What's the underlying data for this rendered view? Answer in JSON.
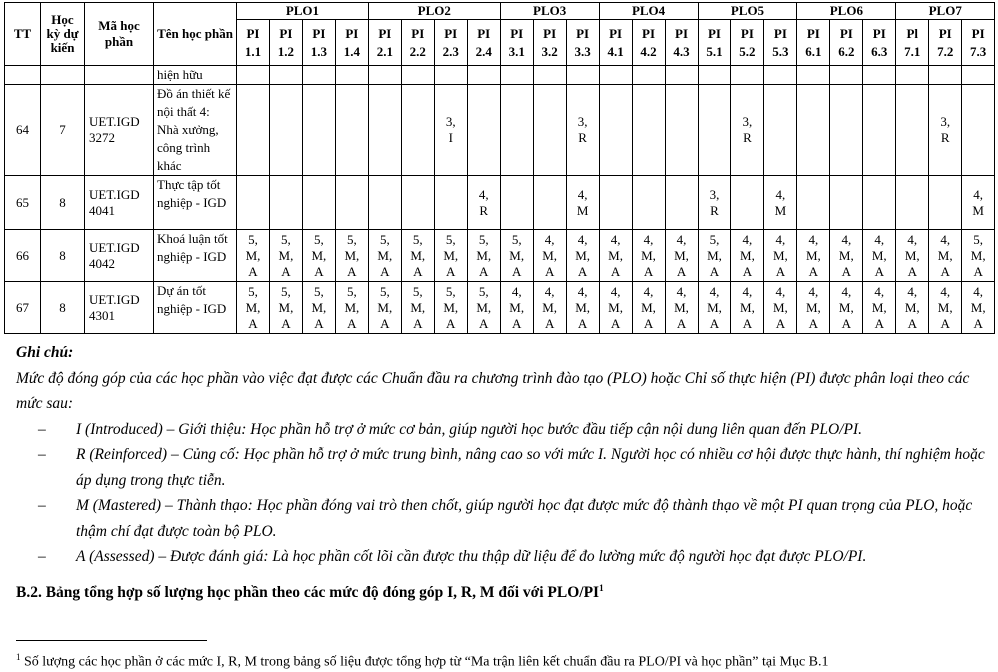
{
  "table": {
    "headers": {
      "tt": "TT",
      "hoc_ky": "Học kỳ dự kiến",
      "ma_hp": "Mã học phần",
      "ten_hp": "Tên học phần",
      "plos": [
        {
          "label": "PLO1",
          "pis": [
            "PI 1.1",
            "PI 1.2",
            "PI 1.3",
            "PI 1.4"
          ]
        },
        {
          "label": "PLO2",
          "pis": [
            "PI 2.1",
            "PI 2.2",
            "PI 2.3",
            "PI 2.4"
          ]
        },
        {
          "label": "PLO3",
          "pis": [
            "PI 3.1",
            "PI 3.2",
            "PI 3.3"
          ]
        },
        {
          "label": "PLO4",
          "pis": [
            "PI 4.1",
            "PI 4.2",
            "PI 4.3"
          ]
        },
        {
          "label": "PLO5",
          "pis": [
            "PI 5.1",
            "PI 5.2",
            "PI 5.3"
          ]
        },
        {
          "label": "PLO6",
          "pis": [
            "PI 6.1",
            "PI 6.2",
            "PI 6.3"
          ]
        },
        {
          "label": "PLO7",
          "pis": [
            "Pl 7.1",
            "PI 7.2",
            "PI 7.3"
          ]
        }
      ]
    },
    "rows": [
      {
        "tt": "",
        "hk": "",
        "code": "",
        "name": "hiện hữu",
        "cells": [
          "",
          "",
          "",
          "",
          "",
          "",
          "",
          "",
          "",
          "",
          "",
          "",
          "",
          "",
          "",
          "",
          "",
          "",
          "",
          "",
          "",
          "",
          ""
        ]
      },
      {
        "tt": "64",
        "hk": "7",
        "code": "UET.IGD 3272",
        "name": "Đồ án thiết kế nội thất 4: Nhà xưởng, công trình khác",
        "cells": [
          "",
          "",
          "",
          "",
          "",
          "",
          "3, I",
          "",
          "",
          "",
          "3, R",
          "",
          "",
          "",
          "",
          "3, R",
          "",
          "",
          "",
          "",
          "",
          "3, R",
          ""
        ]
      },
      {
        "tt": "65",
        "hk": "8",
        "code": "UET.IGD 4041",
        "name": "Thực tập tốt nghiệp - IGD",
        "cells": [
          "",
          "",
          "",
          "",
          "",
          "",
          "",
          "4, R",
          "",
          "",
          "4, M",
          "",
          "",
          "",
          "3, R",
          "",
          "4, M",
          "",
          "",
          "",
          "",
          "",
          "4, M"
        ]
      },
      {
        "tt": "66",
        "hk": "8",
        "code": "UET.IGD 4042",
        "name": "Khoá luận tốt nghiệp - IGD",
        "cells": [
          "5, M, A",
          "5, M, A",
          "5, M, A",
          "5, M, A",
          "5, M, A",
          "5, M, A",
          "5, M, A",
          "5, M, A",
          "5, M, A",
          "4, M, A",
          "4, M, A",
          "4, M, A",
          "4, M, A",
          "4, M, A",
          "5, M, A",
          "4, M, A",
          "4, M, A",
          "4, M, A",
          "4, M, A",
          "4, M, A",
          "4, M, A",
          "4, M, A",
          "5, M, A"
        ]
      },
      {
        "tt": "67",
        "hk": "8",
        "code": "UET.IGD 4301",
        "name": "Dự án tốt nghiệp - IGD",
        "cells": [
          "5, M, A",
          "5, M, A",
          "5, M, A",
          "5, M, A",
          "5, M, A",
          "5, M, A",
          "5, M, A",
          "5, M, A",
          "4, M, A",
          "4, M, A",
          "4, M, A",
          "4, M, A",
          "4, M, A",
          "4, M, A",
          "4, M, A",
          "4, M, A",
          "4, M, A",
          "4, M, A",
          "4, M, A",
          "4, M, A",
          "4, M, A",
          "4, M, A",
          "4, M, A"
        ]
      }
    ]
  },
  "notes": {
    "title": "Ghi chú:",
    "intro": "Mức độ đóng góp của các học phần vào việc đạt được các Chuẩn đầu ra chương trình đào tạo (PLO) hoặc Chỉ số thực hiện (PI) được phân loại theo các mức sau:",
    "dash": "–",
    "items": [
      "I (Introduced) – Giới thiệu: Học phần hỗ trợ ở mức cơ bản, giúp người học bước đầu tiếp cận nội dung liên quan đến PLO/PI.",
      "R (Reinforced) – Củng cố: Học phần hỗ trợ ở mức trung bình, nâng cao so với mức I. Người học có nhiều cơ hội được thực hành, thí nghiệm hoặc áp dụng trong thực tiễn.",
      "M (Mastered) – Thành thạo: Học phần đóng vai trò then chốt, giúp người học đạt được mức độ thành thạo về một PI quan trọng của PLO, hoặc thậm chí đạt được toàn bộ PLO.",
      "A (Assessed) – Được đánh giá: Là học phần cốt lõi cần được thu thập dữ liệu để đo lường mức độ người học đạt được PLO/PI."
    ]
  },
  "section_heading": "B.2. Bảng tổng hợp số lượng học phần theo các mức độ đóng góp I, R, M đối với PLO/PI",
  "footnote_mark": "1",
  "footnote": "Số lượng các học phần ở các mức I, R, M trong bảng số liệu được tổng hợp từ “Ma trận liên kết chuẩn đầu ra PLO/PI và học phần” tại Mục B.1"
}
